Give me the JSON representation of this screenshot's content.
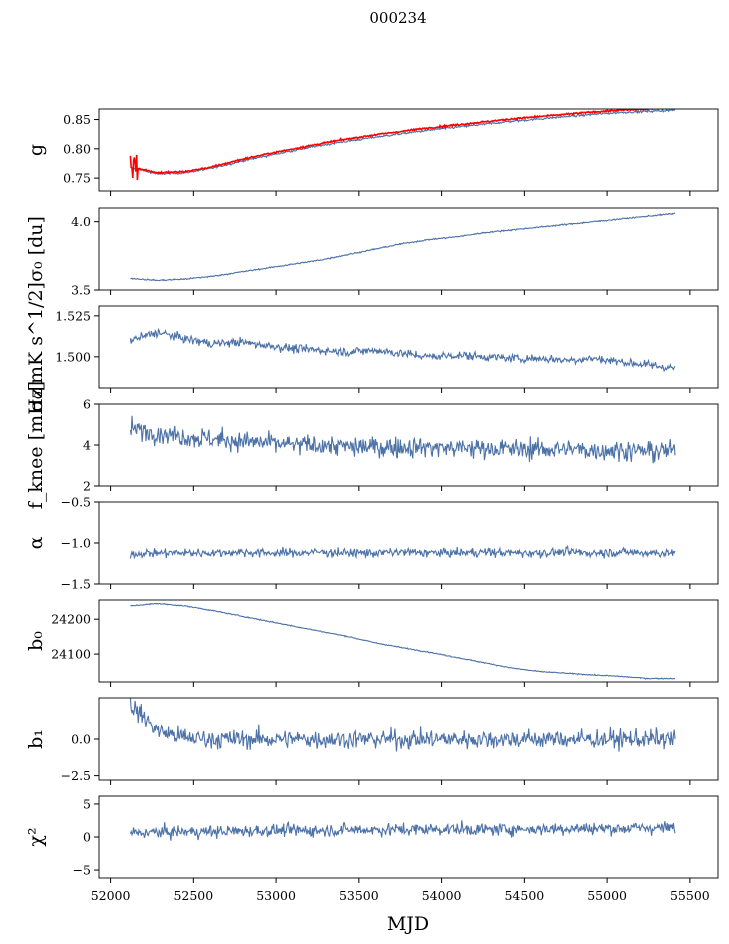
{
  "title": "000234",
  "x_axis": {
    "label": "MJD",
    "range": [
      51930,
      55670
    ],
    "ticks": [
      52000,
      52500,
      53000,
      53500,
      54000,
      54500,
      55000,
      55500
    ],
    "tick_labels": [
      "52000",
      "52500",
      "53000",
      "53500",
      "54000",
      "54500",
      "55000",
      "55500"
    ]
  },
  "colors": {
    "series": "#4c72a8",
    "highlight": "#ff0000"
  },
  "chart_data": [
    {
      "type": "line",
      "ylabel": "g",
      "ylim": [
        0.728,
        0.868
      ],
      "yticks": [
        0.75,
        0.8,
        0.85
      ],
      "ytick_labels": [
        "0.75",
        "0.80",
        "0.85"
      ],
      "series": [
        {
          "x_range": [
            52120,
            55410
          ],
          "values": [
            0.768,
            0.757,
            0.759,
            0.767,
            0.778,
            0.788,
            0.797,
            0.806,
            0.813,
            0.82,
            0.826,
            0.832,
            0.837,
            0.842,
            0.847,
            0.851,
            0.855,
            0.859,
            0.862,
            0.864,
            0.866
          ],
          "noise": 0.0015,
          "color_key": "series"
        },
        {
          "x_range": [
            52120,
            55410
          ],
          "values": [
            0.77,
            0.759,
            0.761,
            0.769,
            0.781,
            0.791,
            0.8,
            0.809,
            0.817,
            0.824,
            0.83,
            0.836,
            0.841,
            0.846,
            0.851,
            0.855,
            0.859,
            0.863,
            0.866,
            0.868,
            0.87
          ],
          "noise": 0.0012,
          "spike": 0.022,
          "color_key": "highlight"
        }
      ]
    },
    {
      "type": "line",
      "ylabel": "σ₀ [du]",
      "ylim": [
        3.5,
        4.1
      ],
      "yticks": [
        3.5,
        4.0
      ],
      "ytick_labels": [
        "3.5",
        "4.0"
      ],
      "series": [
        {
          "x_range": [
            52120,
            55410
          ],
          "values": [
            3.585,
            3.57,
            3.58,
            3.6,
            3.63,
            3.66,
            3.69,
            3.72,
            3.76,
            3.8,
            3.84,
            3.87,
            3.89,
            3.92,
            3.94,
            3.96,
            3.98,
            4.0,
            4.02,
            4.04,
            4.06
          ],
          "noise": 0.004,
          "color_key": "series"
        }
      ]
    },
    {
      "type": "line",
      "ylabel": "σ₀[mK s^1/2]",
      "ylim": [
        1.481,
        1.531
      ],
      "yticks": [
        1.5,
        1.525
      ],
      "ytick_labels": [
        "1.500",
        "1.525"
      ],
      "series": [
        {
          "x_range": [
            52120,
            55410
          ],
          "values": [
            1.51,
            1.515,
            1.511,
            1.508,
            1.509,
            1.507,
            1.505,
            1.504,
            1.503,
            1.504,
            1.502,
            1.5,
            1.501,
            1.5,
            1.499,
            1.499,
            1.498,
            1.499,
            1.497,
            1.495,
            1.493
          ],
          "noise": 0.0022,
          "color_key": "series"
        }
      ]
    },
    {
      "type": "line",
      "ylabel": "f_knee [mHz]",
      "ylim": [
        2,
        6
      ],
      "yticks": [
        2,
        4,
        6
      ],
      "ytick_labels": [
        "2",
        "4",
        "6"
      ],
      "series": [
        {
          "x_range": [
            52120,
            55410
          ],
          "values": [
            4.8,
            4.6,
            4.4,
            4.3,
            4.2,
            4.1,
            4.0,
            4.0,
            3.9,
            3.9,
            3.9,
            3.9,
            3.85,
            3.85,
            3.8,
            3.8,
            3.8,
            3.75,
            3.75,
            3.7,
            3.7
          ],
          "noise": 0.42,
          "color_key": "series"
        }
      ]
    },
    {
      "type": "line",
      "ylabel": "α",
      "ylim": [
        -1.5,
        -0.5
      ],
      "yticks": [
        -1.5,
        -1.0,
        -0.5
      ],
      "ytick_labels": [
        "−1.5",
        "−1.0",
        "−0.5"
      ],
      "series": [
        {
          "x_range": [
            52120,
            55410
          ],
          "values": [
            -1.13,
            -1.12,
            -1.12,
            -1.12,
            -1.11,
            -1.12,
            -1.12,
            -1.11,
            -1.12,
            -1.12,
            -1.11,
            -1.12,
            -1.12,
            -1.11,
            -1.12,
            -1.12,
            -1.11,
            -1.12,
            -1.11,
            -1.12,
            -1.12
          ],
          "noise": 0.045,
          "color_key": "series"
        }
      ]
    },
    {
      "type": "line",
      "ylabel": "b₀",
      "ylim": [
        24020,
        24255
      ],
      "yticks": [
        24100,
        24200
      ],
      "ytick_labels": [
        "24100",
        "24200"
      ],
      "series": [
        {
          "x_range": [
            52120,
            55410
          ],
          "values": [
            24238,
            24245,
            24238,
            24225,
            24210,
            24195,
            24180,
            24165,
            24150,
            24132,
            24118,
            24105,
            24090,
            24075,
            24060,
            24050,
            24045,
            24040,
            24036,
            24030,
            24030
          ],
          "noise": 1.2,
          "color_key": "series"
        }
      ]
    },
    {
      "type": "line",
      "ylabel": "b₁",
      "ylim": [
        -2.8,
        2.8
      ],
      "yticks": [
        -2.5,
        0.0
      ],
      "ytick_labels": [
        "−2.5",
        "0.0"
      ],
      "series": [
        {
          "x_range": [
            52120,
            55410
          ],
          "values": [
            2.3,
            0.6,
            0.1,
            0,
            0,
            0,
            0,
            0,
            0,
            0,
            0,
            0,
            0,
            0,
            0,
            0,
            0,
            0,
            0,
            0,
            0
          ],
          "noise": 0.55,
          "color_key": "series"
        }
      ]
    },
    {
      "type": "line",
      "ylabel": "χ²",
      "ylim": [
        -6.2,
        6.2
      ],
      "yticks": [
        -5,
        0,
        5
      ],
      "ytick_labels": [
        "−5",
        "0",
        "5"
      ],
      "series": [
        {
          "x_range": [
            52120,
            55410
          ],
          "values": [
            0.6,
            0.7,
            0.8,
            0.8,
            0.9,
            1.0,
            1.0,
            1.0,
            1.1,
            1.1,
            1.1,
            1.2,
            1.2,
            1.1,
            1.2,
            1.2,
            1.3,
            1.3,
            1.3,
            1.4,
            1.4
          ],
          "noise": 0.8,
          "color_key": "series"
        }
      ]
    }
  ]
}
